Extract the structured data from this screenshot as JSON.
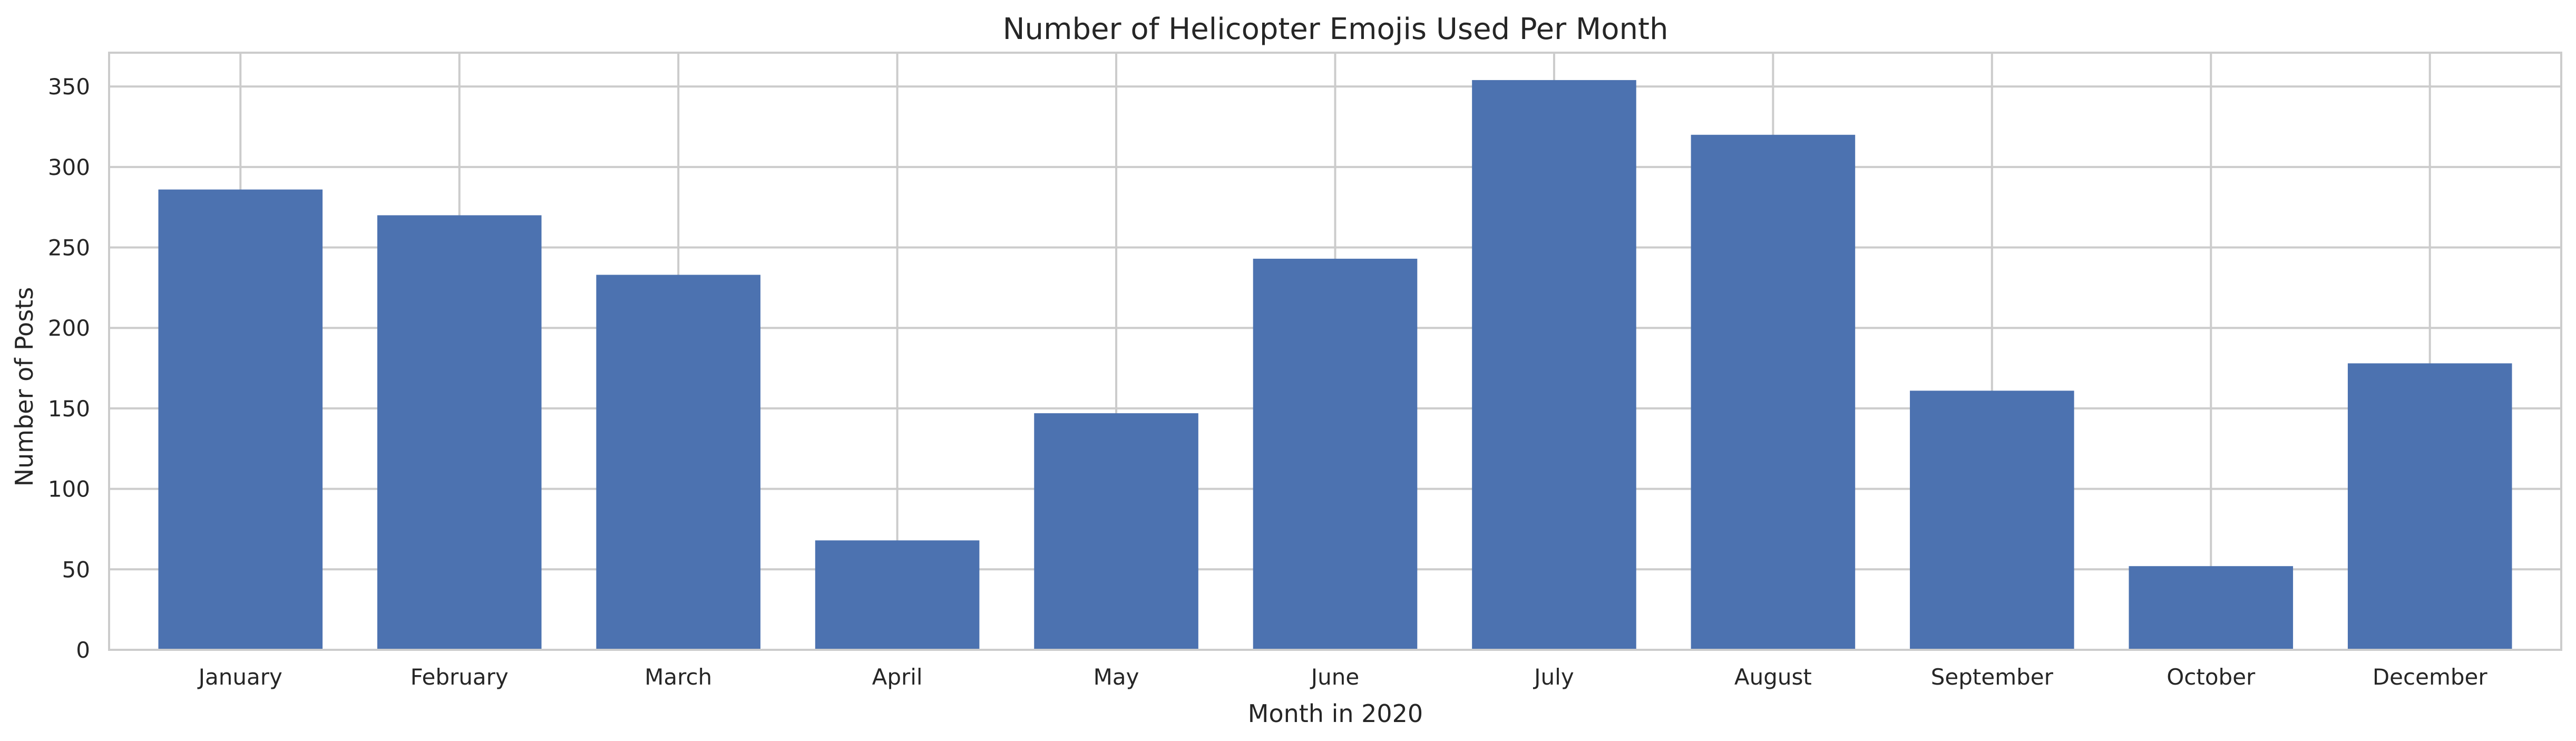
{
  "chart_data": {
    "type": "bar",
    "title": "Number of Helicopter Emojis Used Per Month",
    "xlabel": "Month in 2020",
    "ylabel": "Number of Posts",
    "categories": [
      "January",
      "February",
      "March",
      "April",
      "May",
      "June",
      "July",
      "August",
      "September",
      "October",
      "December"
    ],
    "values": [
      286,
      270,
      233,
      68,
      147,
      243,
      354,
      320,
      161,
      52,
      178
    ],
    "ylim": [
      0,
      371
    ],
    "yticks": [
      0,
      50,
      100,
      150,
      200,
      250,
      300,
      350
    ],
    "grid": true,
    "bar_color": "#4c72b0"
  }
}
